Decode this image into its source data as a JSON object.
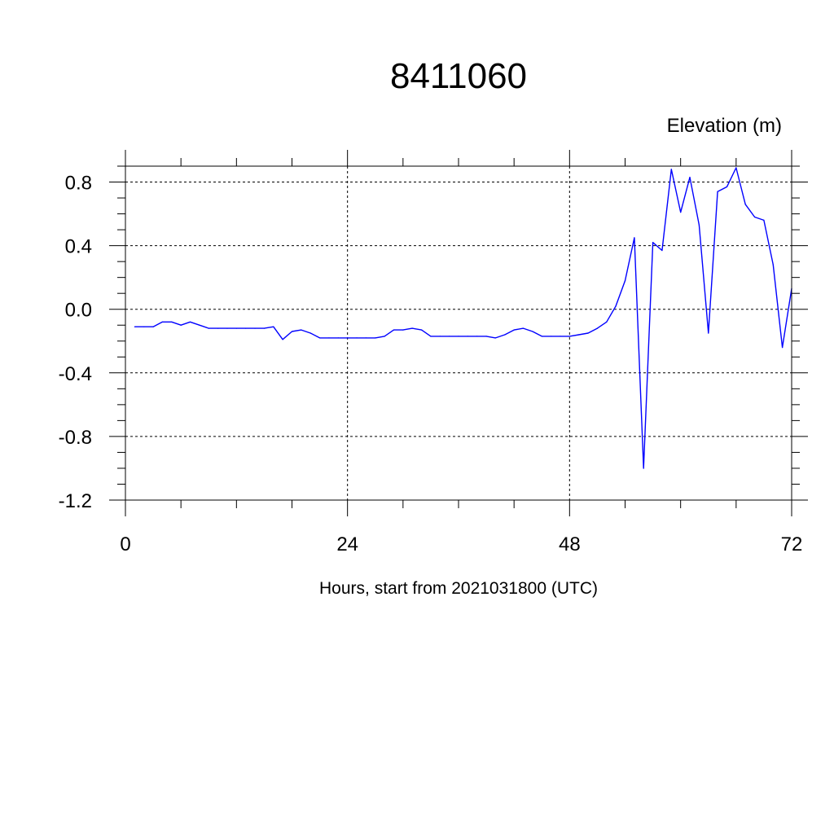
{
  "chart_data": {
    "type": "line",
    "title": "8411060",
    "ylabel": "Elevation (m)",
    "xlabel": "Hours, start from 2021031800 (UTC)",
    "xlim": [
      0,
      72
    ],
    "ylim": [
      -1.2,
      0.9
    ],
    "xticks": [
      0,
      24,
      48,
      72
    ],
    "xtick_labels": [
      "0",
      "24",
      "48",
      "72"
    ],
    "yticks": [
      -1.2,
      -0.8,
      -0.4,
      0.0,
      0.4,
      0.8
    ],
    "ytick_labels": [
      "-1.2",
      "-0.8",
      "-0.4",
      "0.0",
      "0.4",
      "0.8"
    ],
    "grid": true,
    "line_color": "#0000ff",
    "series": [
      {
        "x": [
          1,
          2,
          3,
          4,
          5,
          6,
          7,
          8,
          9,
          10,
          11,
          12,
          13,
          14,
          15,
          16,
          17,
          18,
          19,
          20,
          21,
          22,
          23,
          24,
          25,
          26,
          27,
          28,
          29,
          30,
          31,
          32,
          33,
          34,
          35,
          36,
          37,
          38,
          39,
          40,
          41,
          42,
          43,
          44,
          45,
          46,
          47,
          48,
          49,
          50,
          51,
          52,
          53,
          54,
          55,
          56,
          57,
          58,
          59,
          60,
          61,
          62,
          63,
          64,
          65,
          66,
          67,
          68,
          69,
          70,
          71,
          72
        ],
        "values": [
          -0.11,
          -0.11,
          -0.11,
          -0.08,
          -0.08,
          -0.1,
          -0.08,
          -0.1,
          -0.12,
          -0.12,
          -0.12,
          -0.12,
          -0.12,
          -0.12,
          -0.12,
          -0.11,
          -0.19,
          -0.14,
          -0.13,
          -0.15,
          -0.18,
          -0.18,
          -0.18,
          -0.18,
          -0.18,
          -0.18,
          -0.18,
          -0.17,
          -0.13,
          -0.13,
          -0.12,
          -0.13,
          -0.17,
          -0.17,
          -0.17,
          -0.17,
          -0.17,
          -0.17,
          -0.17,
          -0.18,
          -0.16,
          -0.13,
          -0.12,
          -0.14,
          -0.17,
          -0.17,
          -0.17,
          -0.17,
          -0.16,
          -0.15,
          -0.12,
          -0.08,
          0.02,
          0.18,
          0.45,
          -1.0,
          0.42,
          0.37,
          0.88,
          0.61,
          0.83,
          0.53,
          -0.15,
          0.74,
          0.77,
          0.89,
          0.66,
          0.58,
          0.56,
          0.28,
          -0.24,
          0.13
        ]
      }
    ]
  }
}
